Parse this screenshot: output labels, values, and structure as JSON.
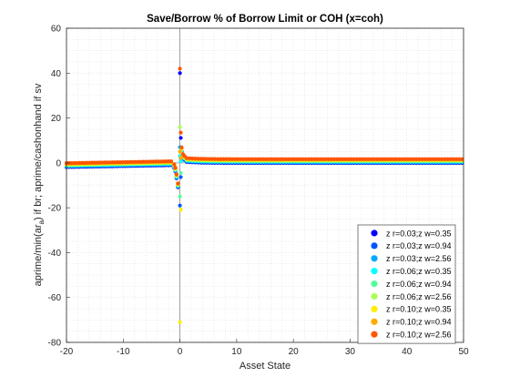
{
  "chart_data": {
    "type": "scatter",
    "title": "Save/Borrow % of Borrow Limit or COH (x=coh)",
    "xlabel": "Asset State",
    "ylabel": "aprime/min(ar_{a}) if br; aprime/cashonhand if sv",
    "ylabel_main": "aprime/min(ar",
    "ylabel_sub": "a",
    "ylabel_rest": ") if br; aprime/cashonhand if sv",
    "xlim": [
      -20,
      50
    ],
    "ylim": [
      -80,
      60
    ],
    "xticks": [
      -20,
      -10,
      0,
      10,
      20,
      30,
      40,
      50
    ],
    "yticks": [
      -80,
      -60,
      -40,
      -20,
      0,
      20,
      40,
      60
    ],
    "grid": "minor dotted",
    "legend_position": "bottom-right",
    "series": [
      {
        "name": "z r=0.03;z w=0.35",
        "color": "#0000ff",
        "spike_y": 40
      },
      {
        "name": "z r=0.03;z w=0.94",
        "color": "#0055ff",
        "spike_y": -19
      },
      {
        "name": "z r=0.03;z w=2.56",
        "color": "#00aaff",
        "spike_y": 7
      },
      {
        "name": "z r=0.06;z w=0.35",
        "color": "#00ffff",
        "spike_y": 3
      },
      {
        "name": "z r=0.06;z w=0.94",
        "color": "#55ff99",
        "spike_y": -15
      },
      {
        "name": "z r=0.06;z w=2.56",
        "color": "#aaff55",
        "spike_y": 16
      },
      {
        "name": "z r=0.10;z w=0.35",
        "color": "#ffee00",
        "spike_y": -71
      },
      {
        "name": "z r=0.10;z w=0.94",
        "color": "#ffaa00",
        "spike_y": 5
      },
      {
        "name": "z r=0.10;z w=2.56",
        "color": "#ff5500",
        "spike_y": 42
      }
    ]
  }
}
